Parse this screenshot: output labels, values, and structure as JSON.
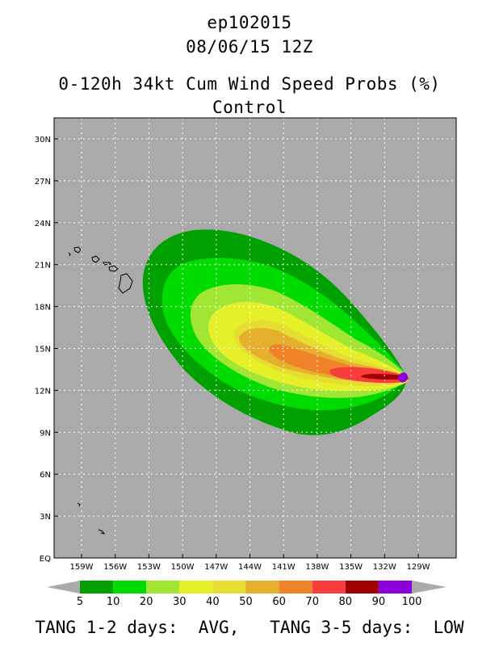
{
  "title": {
    "storm_id": "ep102015",
    "init_time": "08/06/15 12Z",
    "product": "0-120h 34kt Cum Wind Speed Probs (%)",
    "run": "Control"
  },
  "map": {
    "background_color": "#aaaaaa",
    "lat_labels": [
      "30N",
      "27N",
      "24N",
      "21N",
      "18N",
      "15N",
      "12N",
      "9N",
      "6N",
      "3N",
      "EQ"
    ],
    "lon_labels": [
      "159W",
      "156W",
      "153W",
      "150W",
      "147W",
      "144W",
      "141W",
      "138W",
      "135W",
      "132W",
      "129W"
    ],
    "features": [
      "hawaiian-islands",
      "probability-swath"
    ]
  },
  "colorbar": {
    "labels": [
      "5",
      "10",
      "20",
      "30",
      "40",
      "50",
      "60",
      "70",
      "80",
      "90",
      "100"
    ],
    "colors": [
      "#00a000",
      "#00dc00",
      "#a0e632",
      "#e6f028",
      "#e6dc32",
      "#e6af2d",
      "#f08228",
      "#fa3c3c",
      "#a00000",
      "#8c00dc"
    ],
    "arrow_color": "#aaaaaa"
  },
  "footer": {
    "text": "TANG 1-2 days:  AVG,   TANG 3-5 days:  LOW"
  }
}
